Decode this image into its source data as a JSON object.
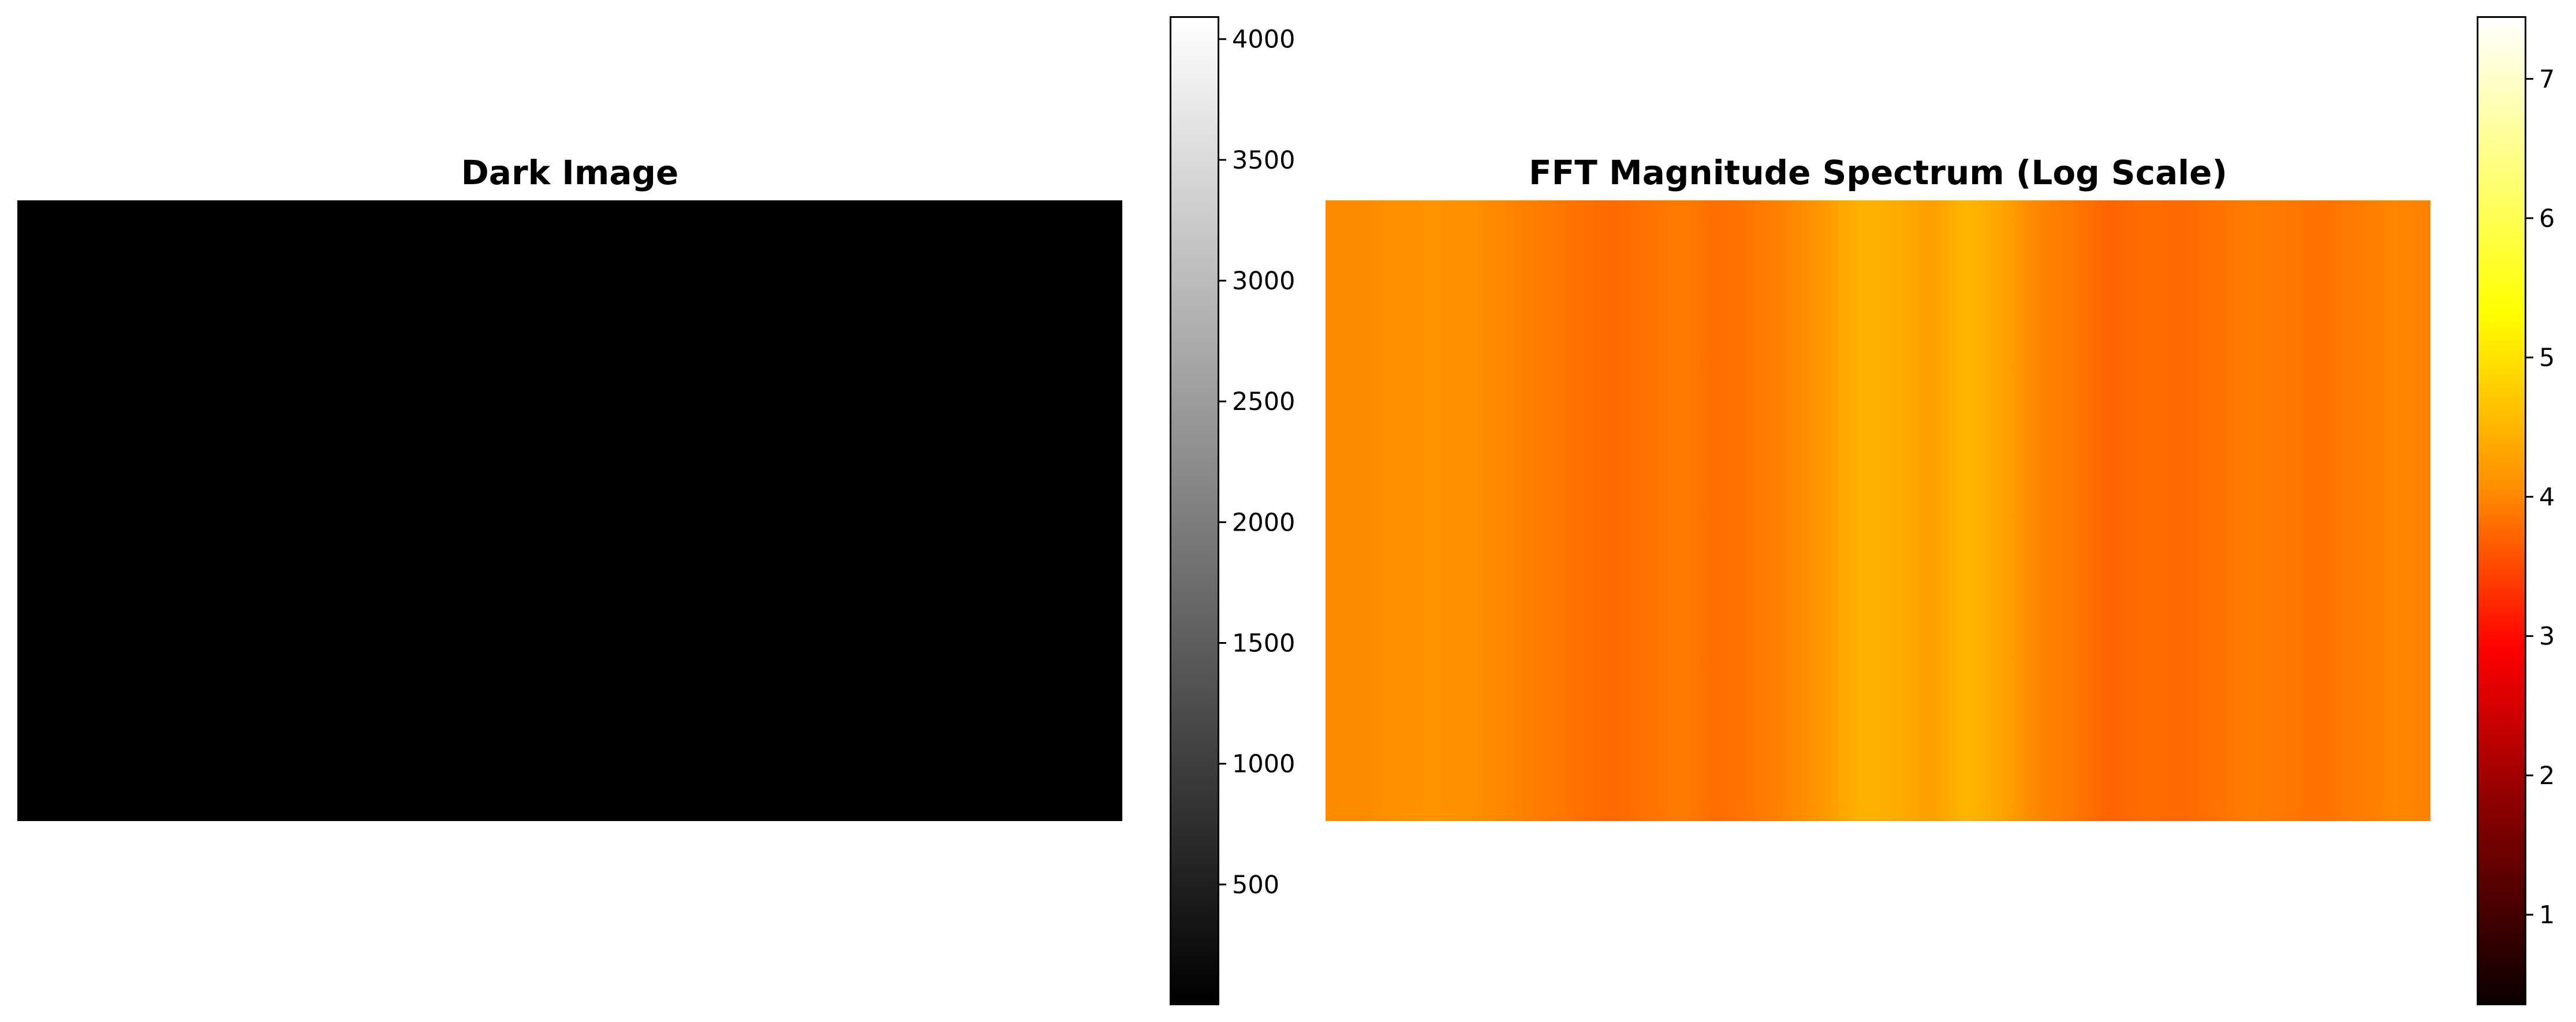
{
  "chart_data": [
    {
      "type": "heatmap",
      "title": "Dark Image",
      "colormap": "gray",
      "colorbar": {
        "range": [
          0,
          4095
        ],
        "ticks": [
          500,
          1000,
          1500,
          2000,
          2500,
          3000,
          3500,
          4000
        ],
        "tick_labels": [
          "500",
          "1000",
          "1500",
          "2000",
          "2500",
          "3000",
          "3500",
          "4000"
        ]
      },
      "image_fill_color": "#000000",
      "axes": "off"
    },
    {
      "type": "heatmap",
      "title": "FFT Magnitude Spectrum (Log Scale)",
      "colormap": "hot",
      "colorbar": {
        "range": [
          0.35,
          7.45
        ],
        "ticks": [
          1,
          2,
          3,
          4,
          5,
          6,
          7
        ],
        "tick_labels": [
          "1",
          "2",
          "3",
          "4",
          "5",
          "6",
          "7"
        ]
      },
      "column_profile_log_magnitude": [
        4.35,
        4.35,
        4.4,
        4.45,
        4.4,
        4.3,
        4.2,
        4.1,
        4.0,
        4.1,
        4.2,
        4.05,
        4.15,
        4.3,
        4.5,
        4.75,
        4.7,
        4.55,
        4.8,
        4.6,
        4.3,
        4.15,
        3.95,
        4.05,
        4.0,
        4.1,
        4.2,
        4.15,
        4.1,
        4.2,
        4.3,
        4.25
      ],
      "axes": "off"
    }
  ]
}
